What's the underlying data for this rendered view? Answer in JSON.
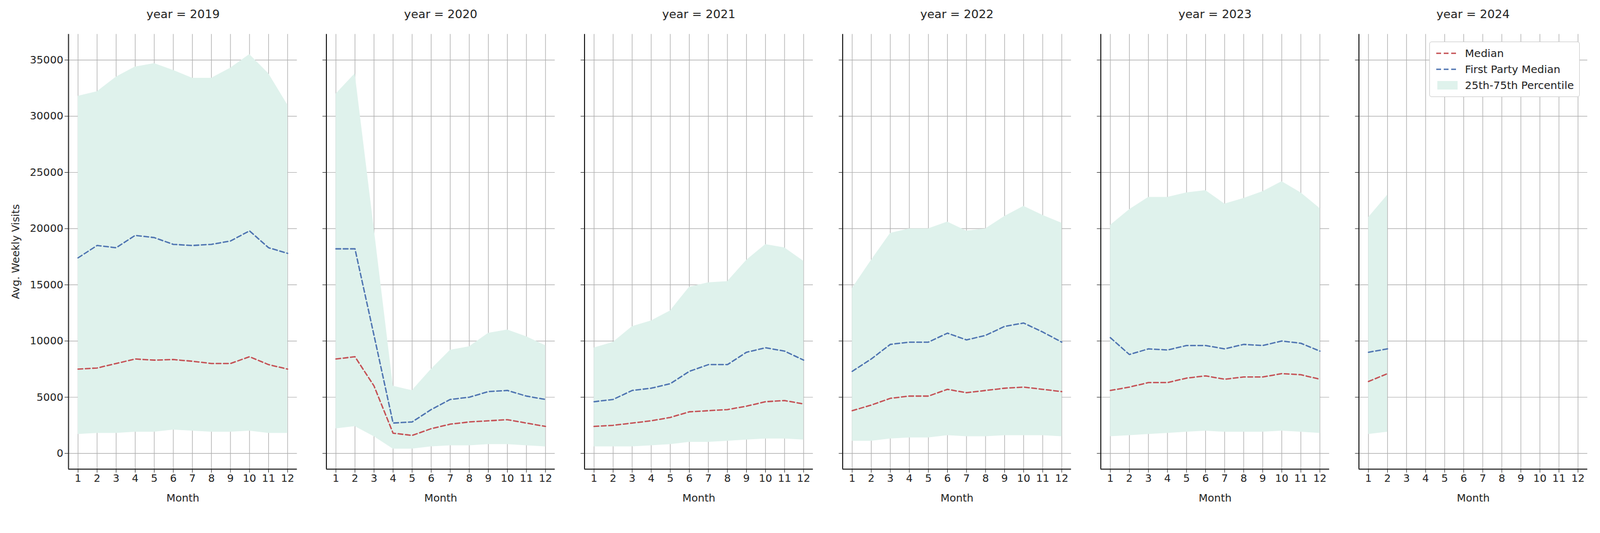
{
  "chart_data": [
    {
      "type": "line",
      "title": "year = 2019",
      "xlabel": "Month",
      "ylabel": "Avg. Weekly Visits",
      "x": [
        1,
        2,
        3,
        4,
        5,
        6,
        7,
        8,
        9,
        10,
        11,
        12
      ],
      "xlim": [
        0.5,
        12.5
      ],
      "xticks": [
        1,
        2,
        3,
        4,
        5,
        6,
        7,
        8,
        9,
        10,
        11,
        12
      ],
      "ylim": [
        -1400,
        37300
      ],
      "yticks": [
        0,
        5000,
        10000,
        15000,
        20000,
        25000,
        30000,
        35000
      ],
      "grid": true,
      "series": [
        {
          "name": "25th-75th Percentile",
          "type": "band",
          "color": "#dff2ec",
          "low": [
            1700,
            1800,
            1800,
            1900,
            1900,
            2100,
            2000,
            1900,
            1900,
            2000,
            1800,
            1800
          ],
          "high": [
            31800,
            32200,
            33500,
            34400,
            34700,
            34100,
            33400,
            33400,
            34300,
            35500,
            33800,
            31000
          ]
        },
        {
          "name": "Median",
          "type": "line",
          "color": "#c44e52",
          "line_style": "dashed",
          "values": [
            7500,
            7600,
            8000,
            8400,
            8300,
            8350,
            8200,
            8000,
            8000,
            8600,
            7900,
            7500
          ]
        },
        {
          "name": "First Party Median",
          "type": "line",
          "color": "#4c72b0",
          "line_style": "dashed",
          "values": [
            17400,
            18500,
            18300,
            19400,
            19200,
            18600,
            18500,
            18600,
            18900,
            19800,
            18300,
            17800
          ]
        }
      ]
    },
    {
      "type": "line",
      "title": "year = 2020",
      "xlabel": "Month",
      "tick_labels": "x",
      "x": [
        1,
        2,
        3,
        4,
        5,
        6,
        7,
        8,
        9,
        10,
        11,
        12
      ],
      "xlim": [
        0.5,
        12.5
      ],
      "xticks": [
        1,
        2,
        3,
        4,
        5,
        6,
        7,
        8,
        9,
        10,
        11,
        12
      ],
      "ylim": [
        -1400,
        37300
      ],
      "yticks": [
        0,
        5000,
        10000,
        15000,
        20000,
        25000,
        30000,
        35000
      ],
      "grid": true,
      "series": [
        {
          "name": "25th-75th Percentile",
          "type": "band",
          "color": "#dff2ec",
          "low": [
            2200,
            2400,
            1500,
            400,
            400,
            600,
            700,
            700,
            800,
            800,
            700,
            600
          ],
          "high": [
            32000,
            33800,
            20000,
            6000,
            5600,
            7500,
            9200,
            9500,
            10700,
            11000,
            10400,
            9600
          ]
        },
        {
          "name": "Median",
          "type": "line",
          "color": "#c44e52",
          "line_style": "dashed",
          "values": [
            8400,
            8600,
            6000,
            1800,
            1600,
            2200,
            2600,
            2800,
            2900,
            3000,
            2700,
            2400
          ]
        },
        {
          "name": "First Party Median",
          "type": "line",
          "color": "#4c72b0",
          "line_style": "dashed",
          "values": [
            18200,
            18200,
            10500,
            2700,
            2800,
            3900,
            4800,
            5000,
            5500,
            5600,
            5100,
            4800
          ]
        }
      ]
    },
    {
      "type": "line",
      "title": "year = 2021",
      "xlabel": "Month",
      "tick_labels": "x",
      "x": [
        1,
        2,
        3,
        4,
        5,
        6,
        7,
        8,
        9,
        10,
        11,
        12
      ],
      "xlim": [
        0.5,
        12.5
      ],
      "xticks": [
        1,
        2,
        3,
        4,
        5,
        6,
        7,
        8,
        9,
        10,
        11,
        12
      ],
      "ylim": [
        -1400,
        37300
      ],
      "yticks": [
        0,
        5000,
        10000,
        15000,
        20000,
        25000,
        30000,
        35000
      ],
      "grid": true,
      "series": [
        {
          "name": "25th-75th Percentile",
          "type": "band",
          "color": "#dff2ec",
          "low": [
            600,
            600,
            600,
            700,
            800,
            1000,
            1000,
            1100,
            1200,
            1300,
            1300,
            1200
          ],
          "high": [
            9400,
            9900,
            11300,
            11800,
            12700,
            14800,
            15200,
            15300,
            17200,
            18600,
            18300,
            17100
          ]
        },
        {
          "name": "Median",
          "type": "line",
          "color": "#c44e52",
          "line_style": "dashed",
          "values": [
            2400,
            2500,
            2700,
            2900,
            3200,
            3700,
            3800,
            3900,
            4200,
            4600,
            4700,
            4400
          ]
        },
        {
          "name": "First Party Median",
          "type": "line",
          "color": "#4c72b0",
          "line_style": "dashed",
          "values": [
            4600,
            4800,
            5600,
            5800,
            6200,
            7300,
            7900,
            7900,
            9000,
            9400,
            9100,
            8300
          ]
        }
      ]
    },
    {
      "type": "line",
      "title": "year = 2022",
      "xlabel": "Month",
      "tick_labels": "x",
      "x": [
        1,
        2,
        3,
        4,
        5,
        6,
        7,
        8,
        9,
        10,
        11,
        12
      ],
      "xlim": [
        0.5,
        12.5
      ],
      "xticks": [
        1,
        2,
        3,
        4,
        5,
        6,
        7,
        8,
        9,
        10,
        11,
        12
      ],
      "ylim": [
        -1400,
        37300
      ],
      "yticks": [
        0,
        5000,
        10000,
        15000,
        20000,
        25000,
        30000,
        35000
      ],
      "grid": true,
      "series": [
        {
          "name": "25th-75th Percentile",
          "type": "band",
          "color": "#dff2ec",
          "low": [
            1100,
            1100,
            1300,
            1400,
            1400,
            1600,
            1500,
            1500,
            1600,
            1600,
            1600,
            1500
          ],
          "high": [
            14700,
            17200,
            19600,
            20000,
            20000,
            20600,
            19800,
            20000,
            21100,
            22000,
            21200,
            20500
          ]
        },
        {
          "name": "Median",
          "type": "line",
          "color": "#c44e52",
          "line_style": "dashed",
          "values": [
            3800,
            4300,
            4900,
            5100,
            5100,
            5700,
            5400,
            5600,
            5800,
            5900,
            5700,
            5500
          ]
        },
        {
          "name": "First Party Median",
          "type": "line",
          "color": "#4c72b0",
          "line_style": "dashed",
          "values": [
            7300,
            8400,
            9700,
            9900,
            9900,
            10700,
            10100,
            10500,
            11300,
            11600,
            10800,
            9900
          ]
        }
      ]
    },
    {
      "type": "line",
      "title": "year = 2023",
      "xlabel": "Month",
      "tick_labels": "x",
      "x": [
        1,
        2,
        3,
        4,
        5,
        6,
        7,
        8,
        9,
        10,
        11,
        12
      ],
      "xlim": [
        0.5,
        12.5
      ],
      "xticks": [
        1,
        2,
        3,
        4,
        5,
        6,
        7,
        8,
        9,
        10,
        11,
        12
      ],
      "ylim": [
        -1400,
        37300
      ],
      "yticks": [
        0,
        5000,
        10000,
        15000,
        20000,
        25000,
        30000,
        35000
      ],
      "grid": true,
      "series": [
        {
          "name": "25th-75th Percentile",
          "type": "band",
          "color": "#dff2ec",
          "low": [
            1500,
            1600,
            1700,
            1800,
            1900,
            2000,
            1900,
            1900,
            1900,
            2000,
            1900,
            1800
          ],
          "high": [
            20300,
            21700,
            22800,
            22800,
            23200,
            23400,
            22200,
            22700,
            23300,
            24200,
            23200,
            21800
          ]
        },
        {
          "name": "Median",
          "type": "line",
          "color": "#c44e52",
          "line_style": "dashed",
          "values": [
            5600,
            5900,
            6300,
            6300,
            6700,
            6900,
            6600,
            6800,
            6800,
            7100,
            7000,
            6600
          ]
        },
        {
          "name": "First Party Median",
          "type": "line",
          "color": "#4c72b0",
          "line_style": "dashed",
          "values": [
            10300,
            8800,
            9300,
            9200,
            9600,
            9600,
            9300,
            9700,
            9600,
            10000,
            9800,
            9100
          ]
        }
      ]
    },
    {
      "type": "line",
      "title": "year = 2024",
      "xlabel": "Month",
      "tick_labels": "x",
      "legend": "upper right",
      "x": [
        1,
        2
      ],
      "xlim": [
        0.5,
        12.5
      ],
      "xticks": [
        1,
        2,
        3,
        4,
        5,
        6,
        7,
        8,
        9,
        10,
        11,
        12
      ],
      "ylim": [
        -1400,
        37300
      ],
      "yticks": [
        0,
        5000,
        10000,
        15000,
        20000,
        25000,
        30000,
        35000
      ],
      "grid": true,
      "series": [
        {
          "name": "25th-75th Percentile",
          "type": "band",
          "color": "#dff2ec",
          "low": [
            1700,
            1900
          ],
          "high": [
            21000,
            23000
          ]
        },
        {
          "name": "Median",
          "type": "line",
          "color": "#c44e52",
          "line_style": "dashed",
          "values": [
            6400,
            7100
          ]
        },
        {
          "name": "First Party Median",
          "type": "line",
          "color": "#4c72b0",
          "line_style": "dashed",
          "values": [
            9000,
            9300
          ]
        }
      ]
    }
  ]
}
